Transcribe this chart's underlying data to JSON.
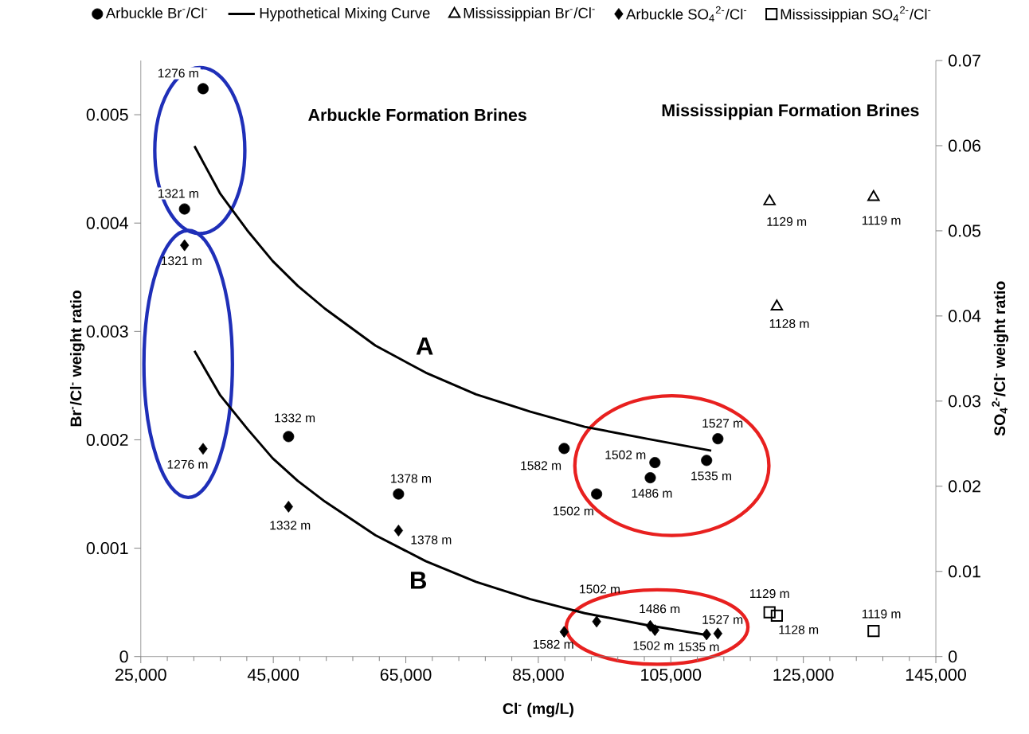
{
  "chart_data": {
    "type": "scatter",
    "xlabel": "Cl$^{-}$ (mg/L)",
    "ylabel": "Br$^{-}$/Cl$^{-}$  weight ratio",
    "y2label": "SO$_{4}$$^{2-}$/Cl$^{-}$  weight ratio",
    "xlim": [
      25000,
      145000
    ],
    "ylim": [
      0,
      0.0055
    ],
    "y2lim": [
      0,
      0.07
    ],
    "xticks": [
      {
        "value": 25000,
        "label": "25,000"
      },
      {
        "value": 45000,
        "label": "45,000"
      },
      {
        "value": 65000,
        "label": "65,000"
      },
      {
        "value": 85000,
        "label": "85,000"
      },
      {
        "value": 105000,
        "label": "105,000"
      },
      {
        "value": 125000,
        "label": "125,000"
      },
      {
        "value": 145000,
        "label": "145,000"
      }
    ],
    "yticks": [
      0,
      0.001,
      0.002,
      0.003,
      0.004,
      0.005
    ],
    "y2ticks": [
      0,
      0.01,
      0.02,
      0.03,
      0.04,
      0.05,
      0.06,
      0.07
    ],
    "legend": "top",
    "grid": false,
    "series": [
      {
        "name": "Arbuckle Br$^{-}$/Cl$^{-}$",
        "marker": "circle",
        "color": "#000000",
        "x": [
          34400,
          31600,
          47300,
          63900,
          88900,
          93800,
          101900,
          102600,
          110400,
          112100
        ],
        "values": [
          0.00524,
          0.00413,
          0.00203,
          0.0015,
          0.00192,
          0.0015,
          0.00165,
          0.00179,
          0.00181,
          0.00201
        ]
      },
      {
        "name": "Hypothetical Mixing Curve",
        "type": "line",
        "marker": "none",
        "color": "#000000",
        "x": [
          33100,
          37000,
          41100,
          44900,
          48700,
          52800,
          60400,
          68000,
          75600,
          83800,
          92000,
          101400,
          111100
        ],
        "values": [
          0.00471,
          0.00427,
          0.00393,
          0.00365,
          0.00342,
          0.00321,
          0.00287,
          0.00262,
          0.00242,
          0.00226,
          0.00212,
          0.00201,
          0.0019
        ]
      },
      {
        "name": "Mississippian Br$^{-}$/Cl$^{-}$",
        "marker": "triangle",
        "color": "#000000",
        "x": [
          119900,
          135600,
          121000
        ],
        "values": [
          0.0042,
          0.00424,
          0.00323
        ]
      },
      {
        "name": "Arbuckle SO$_{4}$$^{2-}$/Cl$^{-}$",
        "marker": "diamond",
        "color": "#000000",
        "axis": "y2",
        "x": [
          31600,
          34400,
          47300,
          63900,
          88900,
          93800,
          101900,
          102600,
          110400,
          112100
        ],
        "values": [
          0.0483,
          0.0244,
          0.0176,
          0.0148,
          0.0029,
          0.0041,
          0.0036,
          0.0031,
          0.0026,
          0.0027
        ]
      },
      {
        "name": "Mississippian SO$_{4}$$^{2-}$/Cl$^{-}$",
        "marker": "square",
        "color": "#000000",
        "axis": "y2",
        "x": [
          119900,
          121000,
          135600
        ],
        "values": [
          0.0052,
          0.0048,
          0.003
        ]
      },
      {
        "type": "line",
        "marker": "none",
        "color": "#000000",
        "x": [
          33100,
          37000,
          41100,
          44900,
          48700,
          52800,
          60400,
          68000,
          75600,
          83800,
          92000,
          101400,
          110300
        ],
        "values": [
          0.00282,
          0.00241,
          0.0021,
          0.00183,
          0.00162,
          0.00143,
          0.00112,
          0.00088,
          0.00069,
          0.00053,
          0.0004,
          0.00029,
          0.0002
        ]
      }
    ],
    "annotations": [
      "Arbuckle Formation Brines",
      "Mississippian Formation Brines",
      "A",
      "B",
      {
        "text": "1276 m",
        "x": 34400,
        "y": 0.00524
      },
      {
        "text": "1321 m",
        "x": 31600,
        "y": 0.00413
      },
      {
        "text": "1332 m",
        "x": 47300,
        "y": 0.00203
      },
      {
        "text": "1378 m",
        "x": 63900,
        "y": 0.0015
      },
      {
        "text": "1582 m",
        "x": 88900,
        "y": 0.00192
      },
      {
        "text": "1502 m",
        "x": 93800,
        "y": 0.0015
      },
      {
        "text": "1486 m",
        "x": 101900,
        "y": 0.00165
      },
      {
        "text": "1502 m",
        "x": 102600,
        "y": 0.00179
      },
      {
        "text": "1535 m",
        "x": 110400,
        "y": 0.00181
      },
      {
        "text": "1527 m",
        "x": 112100,
        "y": 0.00201
      },
      {
        "text": "1129 m",
        "x": 119900,
        "y": 0.0042
      },
      {
        "text": "1119 m",
        "x": 135600,
        "y": 0.00424
      },
      {
        "text": "1128 m",
        "x": 121000,
        "y": 0.00323
      },
      {
        "text": "1321 m",
        "x": 31600,
        "y": 0.003795
      },
      {
        "text": "1276 m",
        "x": 34400,
        "y": 0.001917
      },
      {
        "text": "1332 m",
        "x": 47300,
        "y": 0.001383
      },
      {
        "text": "1378 m",
        "x": 63900,
        "y": 0.001163
      },
      {
        "text": "1582 m",
        "x": 88900,
        "y": 0.000228
      },
      {
        "text": "1502 m",
        "x": 93800,
        "y": 0.000322
      },
      {
        "text": "1486 m",
        "x": 101900,
        "y": 0.000283
      },
      {
        "text": "1502 m",
        "x": 102600,
        "y": 0.000244
      },
      {
        "text": "1535 m",
        "x": 110400,
        "y": 0.000204
      },
      {
        "text": "1527 m",
        "x": 112100,
        "y": 0.000212
      },
      {
        "text": "1129 m",
        "x": 119900,
        "y": 0.000409
      },
      {
        "text": "1128 m",
        "x": 121000,
        "y": 0.000377
      },
      {
        "text": "1119 m",
        "x": 135600,
        "y": 0.000236
      }
    ]
  }
}
